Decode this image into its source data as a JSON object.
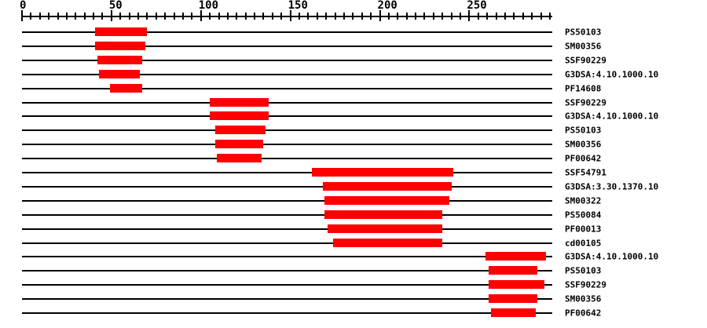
{
  "page": {
    "background_color": "#ffffff",
    "line_color": "#000000",
    "text_color": "#000000"
  },
  "ruler": {
    "start": 0,
    "end": 295,
    "minor_step": 5,
    "major_step": 50,
    "tick_labels": [
      {
        "value": 0,
        "text": "0"
      },
      {
        "value": 50,
        "text": "50"
      },
      {
        "value": 100,
        "text": "100"
      },
      {
        "value": 150,
        "text": "150"
      },
      {
        "value": 200,
        "text": "200"
      },
      {
        "value": 250,
        "text": "250"
      }
    ]
  },
  "chart_data": {
    "type": "bar",
    "subtype": "protein-domain-match-track",
    "orientation": "horizontal-spans",
    "title": "",
    "xlabel": "",
    "ylabel": "",
    "xlim": [
      0,
      296
    ],
    "x_tick_minor": 5,
    "x_tick_major": 50,
    "grid": false,
    "legend": false,
    "bar_color": "#ff0000",
    "rows": [
      {
        "label": "PS50103",
        "start": 41,
        "end": 70
      },
      {
        "label": "SM00356",
        "start": 41,
        "end": 69
      },
      {
        "label": "SSF90229",
        "start": 42,
        "end": 67
      },
      {
        "label": "G3DSA:4.10.1000.10",
        "start": 43,
        "end": 66
      },
      {
        "label": "PF14608",
        "start": 49,
        "end": 67
      },
      {
        "label": "SSF90229",
        "start": 105,
        "end": 138
      },
      {
        "label": "G3DSA:4.10.1000.10",
        "start": 105,
        "end": 138
      },
      {
        "label": "PS50103",
        "start": 108,
        "end": 136
      },
      {
        "label": "SM00356",
        "start": 108,
        "end": 135
      },
      {
        "label": "PF00642",
        "start": 109,
        "end": 134
      },
      {
        "label": "SSF54791",
        "start": 162,
        "end": 241
      },
      {
        "label": "G3DSA:3.30.1370.10",
        "start": 168,
        "end": 240
      },
      {
        "label": "SM00322",
        "start": 169,
        "end": 239
      },
      {
        "label": "PS50084",
        "start": 169,
        "end": 235
      },
      {
        "label": "PF00013",
        "start": 171,
        "end": 235
      },
      {
        "label": "cd00105",
        "start": 174,
        "end": 235
      },
      {
        "label": "G3DSA:4.10.1000.10",
        "start": 259,
        "end": 293
      },
      {
        "label": "PS50103",
        "start": 261,
        "end": 288
      },
      {
        "label": "SSF90229",
        "start": 261,
        "end": 292
      },
      {
        "label": "SM00356",
        "start": 261,
        "end": 288
      },
      {
        "label": "PF00642",
        "start": 262,
        "end": 287
      }
    ]
  }
}
